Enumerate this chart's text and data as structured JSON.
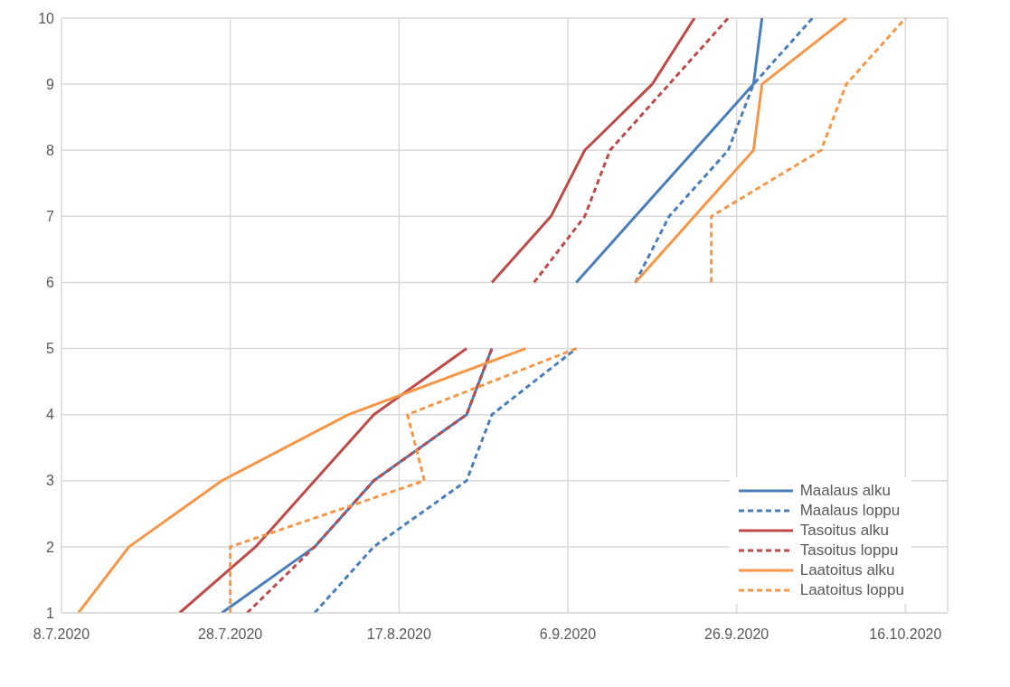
{
  "chart_data": {
    "type": "line",
    "xlim": [
      "2020-07-08",
      "2020-10-21"
    ],
    "xticks": [
      {
        "value": "2020-07-08",
        "label": "8.7.2020"
      },
      {
        "value": "2020-07-28",
        "label": "28.7.2020"
      },
      {
        "value": "2020-08-17",
        "label": "17.8.2020"
      },
      {
        "value": "2020-09-06",
        "label": "6.9.2020"
      },
      {
        "value": "2020-09-26",
        "label": "26.9.2020"
      },
      {
        "value": "2020-10-16",
        "label": "16.10.2020"
      }
    ],
    "ylim": [
      1,
      10
    ],
    "yticks": [
      1,
      2,
      3,
      4,
      5,
      6,
      7,
      8,
      9,
      10
    ],
    "grid": true,
    "legend": "bottom right",
    "marker": "none",
    "series": [
      {
        "name": "Maalaus alku",
        "color": "#4a7ebb",
        "line_style": "solid",
        "x": [
          "2020-07-27",
          "2020-08-07",
          "2020-08-14",
          "2020-08-25",
          "2020-08-28",
          null,
          "2020-09-07",
          "2020-09-14",
          "2020-09-21",
          "2020-09-28",
          "2020-09-29"
        ],
        "values": [
          1,
          2,
          3,
          4,
          5,
          null,
          6,
          7,
          8,
          9,
          10
        ]
      },
      {
        "name": "Maalaus loppu",
        "color": "#4a7ebb",
        "line_style": "dashed",
        "x": [
          "2020-08-07",
          "2020-08-14",
          "2020-08-25",
          "2020-08-28",
          "2020-09-07",
          null,
          "2020-09-14",
          "2020-09-18",
          "2020-09-25",
          "2020-09-28",
          "2020-10-05"
        ],
        "values": [
          1,
          2,
          3,
          4,
          5,
          null,
          6,
          7,
          8,
          9,
          10
        ]
      },
      {
        "name": "Tasoitus alku",
        "color": "#be4b48",
        "line_style": "solid",
        "x": [
          "2020-07-22",
          "2020-07-31",
          "2020-08-07",
          "2020-08-14",
          "2020-08-25",
          null,
          "2020-08-28",
          "2020-09-04",
          "2020-09-08",
          "2020-09-16",
          "2020-09-21"
        ],
        "values": [
          1,
          2,
          3,
          4,
          5,
          null,
          6,
          7,
          8,
          9,
          10
        ]
      },
      {
        "name": "Tasoitus loppu",
        "color": "#be4b48",
        "line_style": "dashed",
        "x": [
          "2020-07-30",
          "2020-08-07",
          "2020-08-14",
          "2020-08-25",
          "2020-08-28",
          null,
          "2020-09-02",
          "2020-09-08",
          "2020-09-11",
          "2020-09-18",
          "2020-09-25"
        ],
        "values": [
          1,
          2,
          3,
          4,
          5,
          null,
          6,
          7,
          8,
          9,
          10
        ]
      },
      {
        "name": "Laatoitus alku",
        "color": "#f79646",
        "line_style": "solid",
        "x": [
          "2020-07-10",
          "2020-07-16",
          "2020-07-27",
          "2020-08-11",
          "2020-09-01",
          null,
          "2020-09-14",
          "2020-09-21",
          "2020-09-28",
          "2020-09-29",
          "2020-10-09"
        ],
        "values": [
          1,
          2,
          3,
          4,
          5,
          null,
          6,
          7,
          8,
          9,
          10
        ]
      },
      {
        "name": "Laatoitus loppu",
        "color": "#f79646",
        "line_style": "dashed",
        "x": [
          "2020-07-28",
          "2020-07-28",
          "2020-08-20",
          "2020-08-18",
          "2020-09-07",
          null,
          "2020-09-23",
          "2020-09-23",
          "2020-10-06",
          "2020-10-09",
          "2020-10-16"
        ],
        "values": [
          1,
          2,
          3,
          4,
          5,
          null,
          6,
          7,
          8,
          9,
          10
        ]
      }
    ]
  }
}
